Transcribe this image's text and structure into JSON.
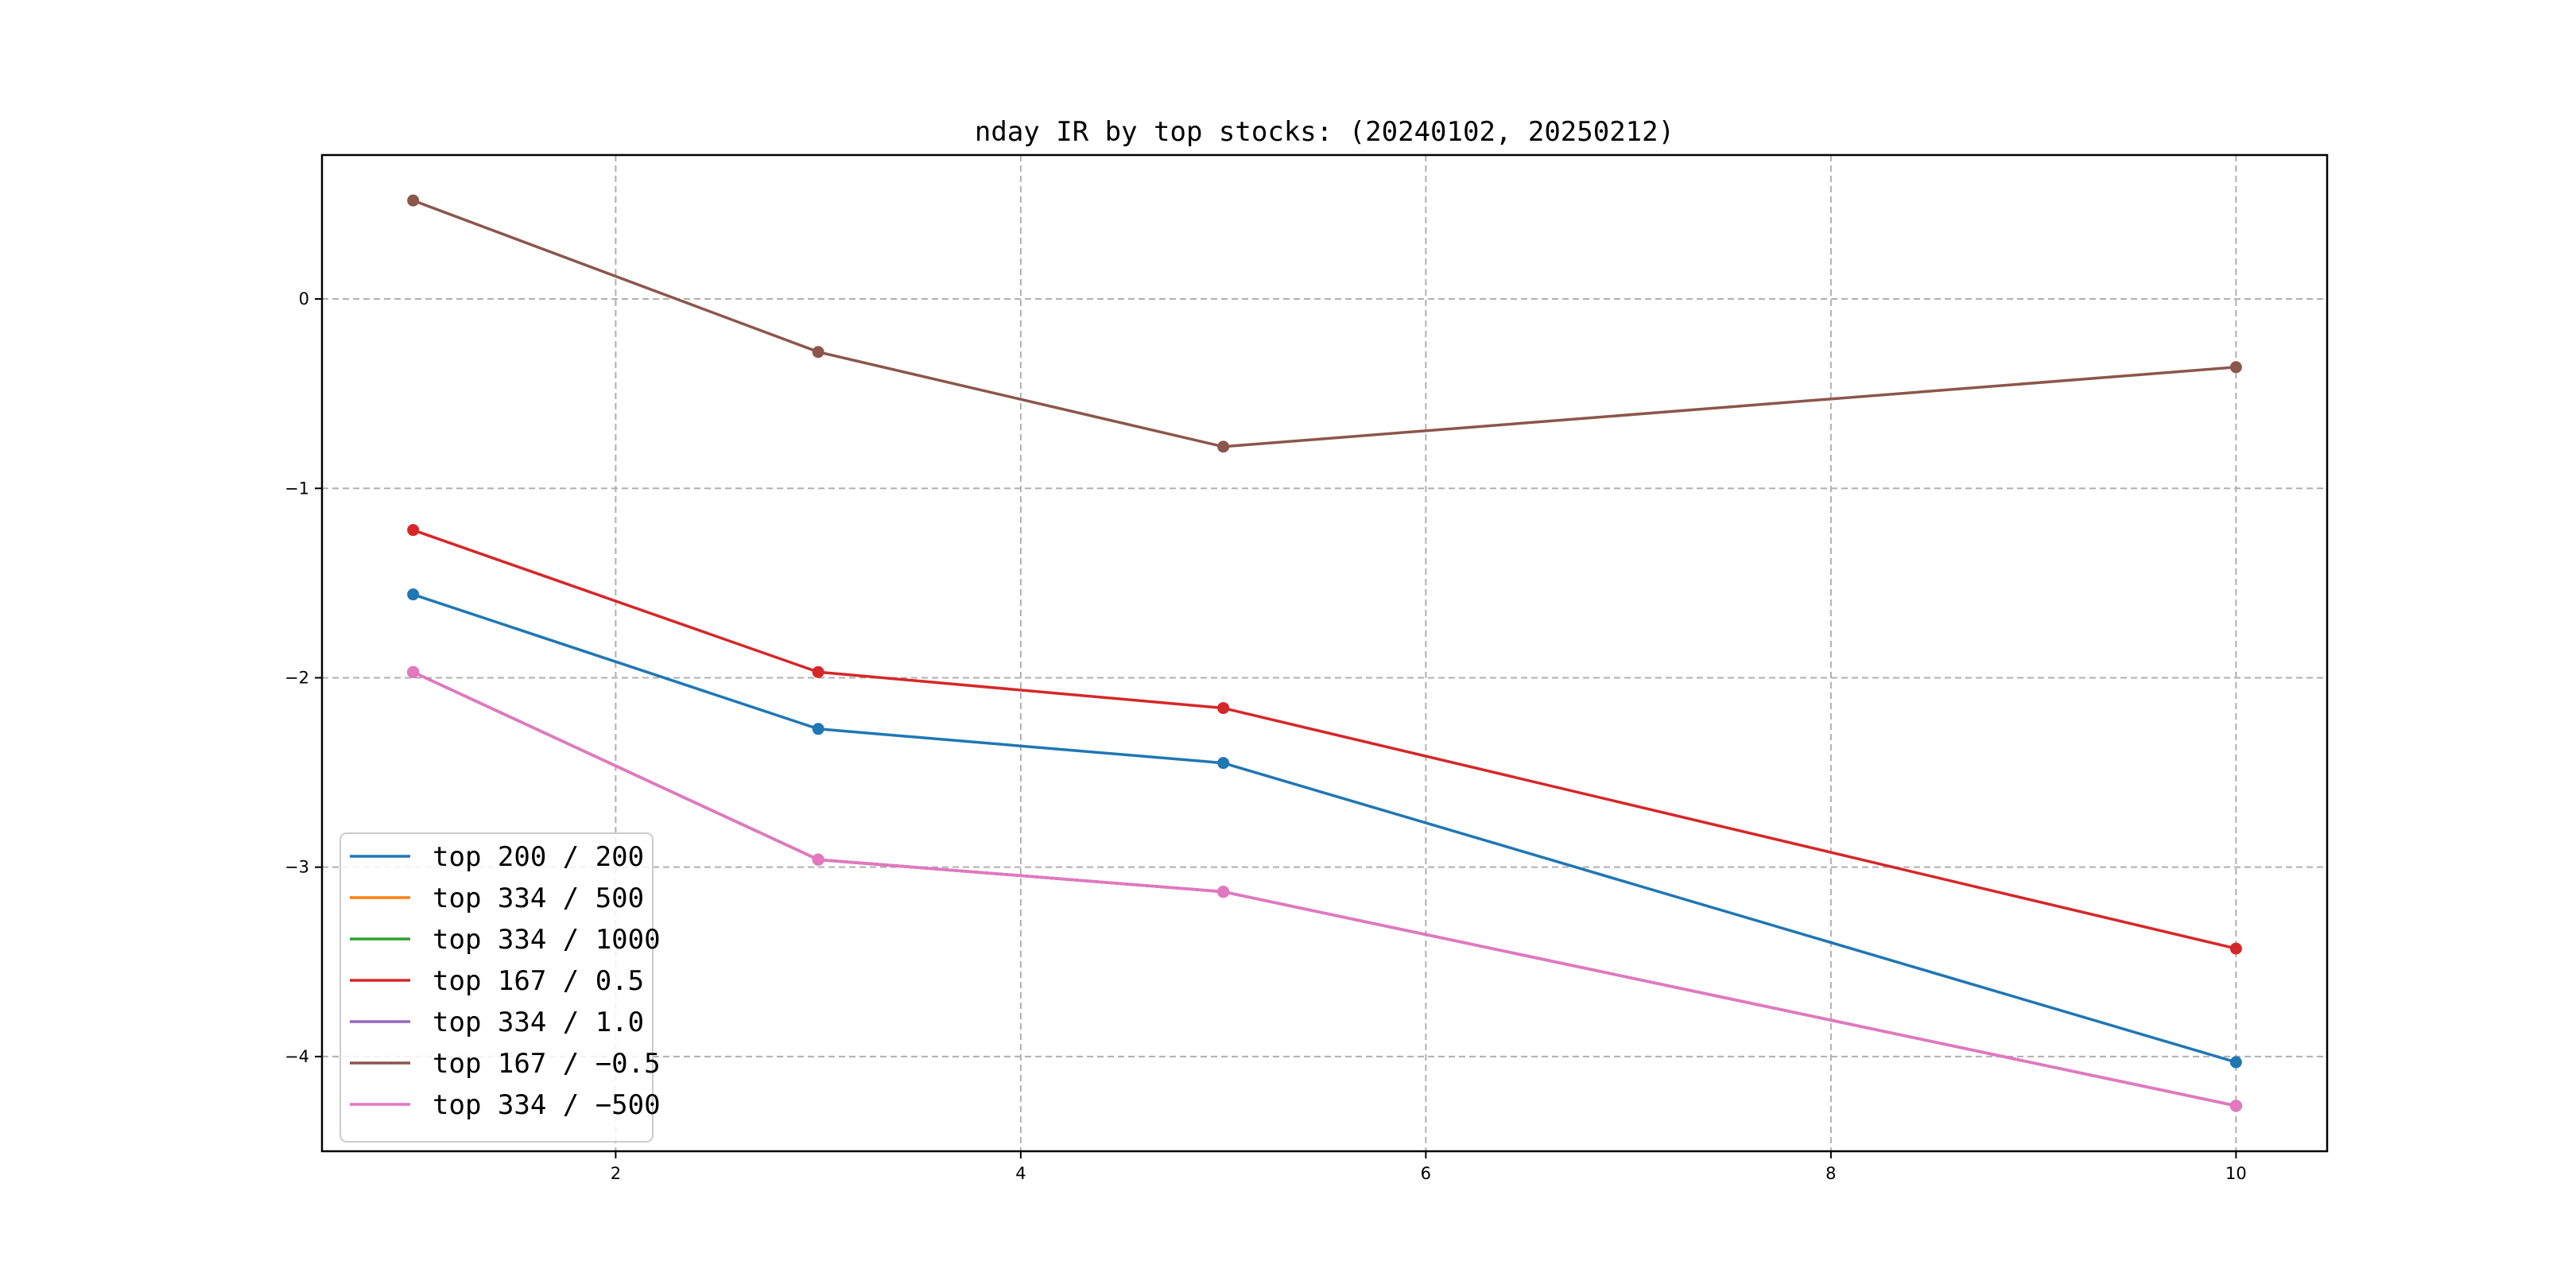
{
  "chart_data": {
    "type": "line",
    "title": "nday IR by top stocks: (20240102, 20250212)",
    "xlabel": "",
    "ylabel": "",
    "x": [
      1,
      3,
      5,
      10
    ],
    "xlim": [
      0.55,
      10.45
    ],
    "ylim": [
      -4.5,
      0.76
    ],
    "xticks": [
      2,
      4,
      6,
      8,
      10
    ],
    "yticks": [
      0,
      -1,
      -2,
      -3,
      -4
    ],
    "xtick_labels": [
      "2",
      "4",
      "6",
      "8",
      "10"
    ],
    "ytick_labels": [
      "0",
      "−1",
      "−2",
      "−3",
      "−4"
    ],
    "grid": true,
    "legend_position": "lower-left",
    "series": [
      {
        "name": "top 200 / 200",
        "color": "#1f77b4",
        "values": [
          -1.56,
          -2.27,
          -2.45,
          -4.03
        ]
      },
      {
        "name": "top 334 / 500",
        "color": "#ff7f0e",
        "values": [
          -1.97,
          -2.96,
          -3.13,
          -4.26
        ]
      },
      {
        "name": "top 334 / 1000",
        "color": "#2ca02c",
        "values": [
          -1.97,
          -2.96,
          -3.13,
          -4.26
        ]
      },
      {
        "name": "top 167 / 0.5",
        "color": "#d62728",
        "values": [
          -1.22,
          -1.97,
          -2.16,
          -3.43
        ]
      },
      {
        "name": "top 334 / 1.0",
        "color": "#9467bd",
        "values": [
          -1.97,
          -2.96,
          -3.13,
          -4.26
        ]
      },
      {
        "name": "top 167 / −0.5",
        "color": "#8c564b",
        "values": [
          0.52,
          -0.28,
          -0.78,
          -0.36
        ]
      },
      {
        "name": "top 334 / −500",
        "color": "#e377c2",
        "values": [
          -1.97,
          -2.96,
          -3.13,
          -4.26
        ]
      }
    ]
  }
}
